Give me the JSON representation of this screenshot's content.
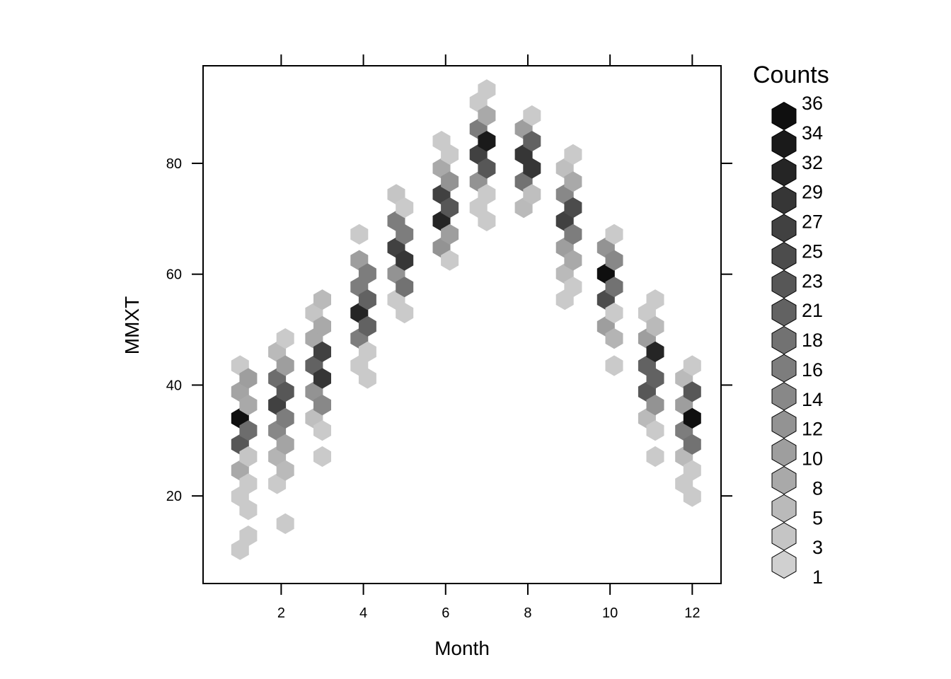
{
  "chart_data": {
    "type": "hexbin",
    "xlabel": "Month",
    "ylabel": "MMXT",
    "xlim": [
      0.1,
      12.7
    ],
    "ylim": [
      4.2,
      97.6
    ],
    "x_ticks": [
      2,
      4,
      6,
      8,
      10,
      12
    ],
    "y_ticks": [
      20,
      40,
      60,
      80
    ],
    "grid": false,
    "legend": {
      "title": "Counts",
      "position": "right",
      "levels": [
        36,
        34,
        32,
        29,
        27,
        25,
        23,
        21,
        18,
        16,
        14,
        12,
        10,
        8,
        5,
        3,
        1
      ]
    },
    "color_scale": {
      "low": "#d0d0d0",
      "high": "#0f0f0f"
    },
    "cells": [
      {
        "x": 1.0,
        "y": 43.5,
        "count": 2
      },
      {
        "x": 1.0,
        "y": 38.8,
        "count": 9
      },
      {
        "x": 1.0,
        "y": 34.0,
        "count": 36
      },
      {
        "x": 1.0,
        "y": 29.3,
        "count": 23
      },
      {
        "x": 1.0,
        "y": 24.6,
        "count": 8
      },
      {
        "x": 1.0,
        "y": 19.9,
        "count": 2
      },
      {
        "x": 1.0,
        "y": 10.3,
        "count": 2
      },
      {
        "x": 1.2,
        "y": 41.2,
        "count": 10
      },
      {
        "x": 1.2,
        "y": 36.4,
        "count": 8
      },
      {
        "x": 1.2,
        "y": 31.8,
        "count": 19
      },
      {
        "x": 1.2,
        "y": 27.1,
        "count": 3
      },
      {
        "x": 1.2,
        "y": 22.2,
        "count": 2
      },
      {
        "x": 1.2,
        "y": 17.5,
        "count": 2
      },
      {
        "x": 1.2,
        "y": 12.8,
        "count": 2
      },
      {
        "x": 1.9,
        "y": 46.0,
        "count": 5
      },
      {
        "x": 1.9,
        "y": 41.2,
        "count": 19
      },
      {
        "x": 1.9,
        "y": 36.4,
        "count": 27
      },
      {
        "x": 1.9,
        "y": 31.8,
        "count": 14
      },
      {
        "x": 1.9,
        "y": 27.1,
        "count": 6
      },
      {
        "x": 1.9,
        "y": 22.2,
        "count": 2
      },
      {
        "x": 2.1,
        "y": 48.4,
        "count": 2
      },
      {
        "x": 2.1,
        "y": 43.5,
        "count": 10
      },
      {
        "x": 2.1,
        "y": 38.8,
        "count": 23
      },
      {
        "x": 2.1,
        "y": 34.0,
        "count": 16
      },
      {
        "x": 2.1,
        "y": 29.3,
        "count": 9
      },
      {
        "x": 2.1,
        "y": 24.6,
        "count": 5
      },
      {
        "x": 2.1,
        "y": 15.0,
        "count": 2
      },
      {
        "x": 2.8,
        "y": 53.0,
        "count": 3
      },
      {
        "x": 2.8,
        "y": 48.4,
        "count": 8
      },
      {
        "x": 2.8,
        "y": 43.5,
        "count": 21
      },
      {
        "x": 2.8,
        "y": 38.8,
        "count": 12
      },
      {
        "x": 2.8,
        "y": 34.0,
        "count": 4
      },
      {
        "x": 3.0,
        "y": 55.4,
        "count": 5
      },
      {
        "x": 3.0,
        "y": 50.6,
        "count": 8
      },
      {
        "x": 3.0,
        "y": 46.0,
        "count": 27
      },
      {
        "x": 3.0,
        "y": 41.2,
        "count": 29
      },
      {
        "x": 3.0,
        "y": 36.4,
        "count": 14
      },
      {
        "x": 3.0,
        "y": 31.8,
        "count": 2
      },
      {
        "x": 3.0,
        "y": 27.1,
        "count": 2
      },
      {
        "x": 3.9,
        "y": 67.2,
        "count": 2
      },
      {
        "x": 3.9,
        "y": 62.5,
        "count": 10
      },
      {
        "x": 3.9,
        "y": 57.7,
        "count": 16
      },
      {
        "x": 3.9,
        "y": 53.0,
        "count": 32
      },
      {
        "x": 3.9,
        "y": 48.4,
        "count": 16
      },
      {
        "x": 3.9,
        "y": 43.5,
        "count": 2
      },
      {
        "x": 4.1,
        "y": 60.1,
        "count": 16
      },
      {
        "x": 4.1,
        "y": 55.4,
        "count": 21
      },
      {
        "x": 4.1,
        "y": 50.6,
        "count": 21
      },
      {
        "x": 4.1,
        "y": 46.0,
        "count": 2
      },
      {
        "x": 4.1,
        "y": 41.2,
        "count": 2
      },
      {
        "x": 4.8,
        "y": 74.4,
        "count": 3
      },
      {
        "x": 4.8,
        "y": 69.6,
        "count": 16
      },
      {
        "x": 4.8,
        "y": 64.8,
        "count": 27
      },
      {
        "x": 4.8,
        "y": 60.1,
        "count": 12
      },
      {
        "x": 4.8,
        "y": 55.4,
        "count": 2
      },
      {
        "x": 5.0,
        "y": 72.0,
        "count": 2
      },
      {
        "x": 5.0,
        "y": 67.2,
        "count": 16
      },
      {
        "x": 5.0,
        "y": 62.5,
        "count": 29
      },
      {
        "x": 5.0,
        "y": 57.7,
        "count": 18
      },
      {
        "x": 5.0,
        "y": 53.0,
        "count": 2
      },
      {
        "x": 5.9,
        "y": 84.0,
        "count": 2
      },
      {
        "x": 5.9,
        "y": 79.1,
        "count": 8
      },
      {
        "x": 5.9,
        "y": 74.4,
        "count": 27
      },
      {
        "x": 5.9,
        "y": 69.6,
        "count": 32
      },
      {
        "x": 5.9,
        "y": 64.8,
        "count": 12
      },
      {
        "x": 6.1,
        "y": 81.6,
        "count": 2
      },
      {
        "x": 6.1,
        "y": 76.7,
        "count": 12
      },
      {
        "x": 6.1,
        "y": 72.0,
        "count": 23
      },
      {
        "x": 6.1,
        "y": 67.2,
        "count": 10
      },
      {
        "x": 6.1,
        "y": 62.5,
        "count": 2
      },
      {
        "x": 6.8,
        "y": 91.0,
        "count": 2
      },
      {
        "x": 6.8,
        "y": 86.2,
        "count": 16
      },
      {
        "x": 6.8,
        "y": 81.6,
        "count": 27
      },
      {
        "x": 6.8,
        "y": 76.7,
        "count": 12
      },
      {
        "x": 6.8,
        "y": 72.0,
        "count": 2
      },
      {
        "x": 7.0,
        "y": 93.3,
        "count": 2
      },
      {
        "x": 7.0,
        "y": 88.6,
        "count": 8
      },
      {
        "x": 7.0,
        "y": 84.0,
        "count": 34
      },
      {
        "x": 7.0,
        "y": 79.1,
        "count": 23
      },
      {
        "x": 7.0,
        "y": 74.4,
        "count": 2
      },
      {
        "x": 7.0,
        "y": 69.6,
        "count": 2
      },
      {
        "x": 7.9,
        "y": 86.2,
        "count": 10
      },
      {
        "x": 7.9,
        "y": 81.6,
        "count": 29
      },
      {
        "x": 7.9,
        "y": 76.7,
        "count": 18
      },
      {
        "x": 7.9,
        "y": 72.0,
        "count": 5
      },
      {
        "x": 8.1,
        "y": 88.6,
        "count": 2
      },
      {
        "x": 8.1,
        "y": 84.0,
        "count": 21
      },
      {
        "x": 8.1,
        "y": 79.1,
        "count": 29
      },
      {
        "x": 8.1,
        "y": 74.4,
        "count": 4
      },
      {
        "x": 8.9,
        "y": 79.1,
        "count": 4
      },
      {
        "x": 8.9,
        "y": 74.4,
        "count": 14
      },
      {
        "x": 8.9,
        "y": 69.6,
        "count": 27
      },
      {
        "x": 8.9,
        "y": 64.8,
        "count": 10
      },
      {
        "x": 8.9,
        "y": 60.1,
        "count": 5
      },
      {
        "x": 8.9,
        "y": 55.4,
        "count": 2
      },
      {
        "x": 9.1,
        "y": 81.6,
        "count": 2
      },
      {
        "x": 9.1,
        "y": 76.7,
        "count": 8
      },
      {
        "x": 9.1,
        "y": 72.0,
        "count": 25
      },
      {
        "x": 9.1,
        "y": 67.2,
        "count": 16
      },
      {
        "x": 9.1,
        "y": 62.5,
        "count": 8
      },
      {
        "x": 9.1,
        "y": 57.7,
        "count": 2
      },
      {
        "x": 9.9,
        "y": 64.8,
        "count": 12
      },
      {
        "x": 9.9,
        "y": 60.1,
        "count": 36
      },
      {
        "x": 9.9,
        "y": 55.4,
        "count": 25
      },
      {
        "x": 9.9,
        "y": 50.6,
        "count": 10
      },
      {
        "x": 10.1,
        "y": 67.2,
        "count": 2
      },
      {
        "x": 10.1,
        "y": 62.5,
        "count": 14
      },
      {
        "x": 10.1,
        "y": 57.7,
        "count": 18
      },
      {
        "x": 10.1,
        "y": 53.0,
        "count": 2
      },
      {
        "x": 10.1,
        "y": 48.4,
        "count": 6
      },
      {
        "x": 10.1,
        "y": 43.5,
        "count": 2
      },
      {
        "x": 10.9,
        "y": 53.0,
        "count": 2
      },
      {
        "x": 10.9,
        "y": 48.4,
        "count": 10
      },
      {
        "x": 10.9,
        "y": 43.5,
        "count": 21
      },
      {
        "x": 10.9,
        "y": 38.8,
        "count": 23
      },
      {
        "x": 10.9,
        "y": 34.0,
        "count": 5
      },
      {
        "x": 11.1,
        "y": 55.4,
        "count": 2
      },
      {
        "x": 11.1,
        "y": 50.6,
        "count": 5
      },
      {
        "x": 11.1,
        "y": 46.0,
        "count": 32
      },
      {
        "x": 11.1,
        "y": 41.2,
        "count": 21
      },
      {
        "x": 11.1,
        "y": 36.4,
        "count": 12
      },
      {
        "x": 11.1,
        "y": 31.8,
        "count": 2
      },
      {
        "x": 11.1,
        "y": 27.1,
        "count": 2
      },
      {
        "x": 11.8,
        "y": 41.2,
        "count": 5
      },
      {
        "x": 11.8,
        "y": 36.4,
        "count": 10
      },
      {
        "x": 11.8,
        "y": 31.8,
        "count": 16
      },
      {
        "x": 11.8,
        "y": 27.1,
        "count": 5
      },
      {
        "x": 11.8,
        "y": 22.2,
        "count": 2
      },
      {
        "x": 12.0,
        "y": 43.5,
        "count": 2
      },
      {
        "x": 12.0,
        "y": 38.8,
        "count": 23
      },
      {
        "x": 12.0,
        "y": 34.0,
        "count": 36
      },
      {
        "x": 12.0,
        "y": 29.3,
        "count": 18
      },
      {
        "x": 12.0,
        "y": 24.6,
        "count": 2
      },
      {
        "x": 12.0,
        "y": 19.9,
        "count": 2
      }
    ]
  }
}
